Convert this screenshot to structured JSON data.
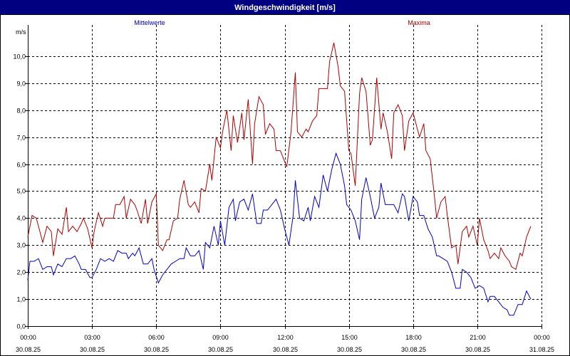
{
  "chart_data": {
    "type": "line",
    "title": "Windgeschwindigkeit [m/s]",
    "ylabel": "m/s",
    "ylim": [
      0,
      11
    ],
    "yticks": [
      "0,0",
      "1,0",
      "2,0",
      "3,0",
      "4,0",
      "5,0",
      "6,0",
      "7,0",
      "8,0",
      "9,0",
      "10,0"
    ],
    "xlim": [
      0,
      24
    ],
    "xticks": [
      {
        "time": "00:00",
        "date": "30.08.25",
        "hour": 0
      },
      {
        "time": "03:00",
        "date": "30.08.25",
        "hour": 3
      },
      {
        "time": "06:00",
        "date": "30.08.25",
        "hour": 6
      },
      {
        "time": "09:00",
        "date": "30.08.25",
        "hour": 9
      },
      {
        "time": "12:00",
        "date": "30.08.25",
        "hour": 12
      },
      {
        "time": "15:00",
        "date": "30.08.25",
        "hour": 15
      },
      {
        "time": "18:00",
        "date": "30.08.25",
        "hour": 18
      },
      {
        "time": "21:00",
        "date": "30.08.25",
        "hour": 21
      },
      {
        "time": "00:00",
        "date": "31.08.25",
        "hour": 24
      }
    ],
    "grid": true,
    "series": [
      {
        "name": "Mittelwerte",
        "color": "#0000cc",
        "values": [
          [
            0.0,
            1.7
          ],
          [
            0.1,
            2.4
          ],
          [
            0.3,
            2.4
          ],
          [
            0.5,
            2.5
          ],
          [
            0.7,
            2.1
          ],
          [
            0.9,
            2.2
          ],
          [
            1.1,
            2.2
          ],
          [
            1.2,
            1.9
          ],
          [
            1.4,
            2.3
          ],
          [
            1.6,
            2.2
          ],
          [
            1.8,
            2.5
          ],
          [
            2.0,
            2.5
          ],
          [
            2.2,
            2.6
          ],
          [
            2.4,
            2.3
          ],
          [
            2.5,
            2.1
          ],
          [
            2.7,
            2.1
          ],
          [
            2.9,
            1.8
          ],
          [
            3.0,
            1.8
          ],
          [
            3.2,
            2.1
          ],
          [
            3.4,
            2.5
          ],
          [
            3.6,
            2.4
          ],
          [
            3.8,
            2.5
          ],
          [
            4.0,
            2.4
          ],
          [
            4.2,
            2.8
          ],
          [
            4.4,
            2.7
          ],
          [
            4.6,
            2.7
          ],
          [
            4.7,
            2.5
          ],
          [
            4.9,
            2.7
          ],
          [
            5.0,
            2.6
          ],
          [
            5.2,
            2.9
          ],
          [
            5.4,
            2.3
          ],
          [
            5.6,
            2.3
          ],
          [
            5.8,
            2.5
          ],
          [
            5.9,
            2.1
          ],
          [
            6.1,
            1.6
          ],
          [
            6.3,
            1.9
          ],
          [
            6.5,
            2.1
          ],
          [
            6.7,
            2.3
          ],
          [
            6.9,
            2.4
          ],
          [
            7.1,
            2.5
          ],
          [
            7.3,
            2.5
          ],
          [
            7.4,
            2.9
          ],
          [
            7.6,
            2.6
          ],
          [
            7.8,
            2.6
          ],
          [
            8.0,
            2.8
          ],
          [
            8.2,
            2.1
          ],
          [
            8.3,
            3.1
          ],
          [
            8.5,
            2.9
          ],
          [
            8.7,
            3.7
          ],
          [
            8.9,
            3.0
          ],
          [
            9.0,
            3.9
          ],
          [
            9.2,
            3.0
          ],
          [
            9.4,
            4.4
          ],
          [
            9.6,
            4.7
          ],
          [
            9.7,
            3.9
          ],
          [
            9.9,
            4.6
          ],
          [
            10.1,
            4.7
          ],
          [
            10.3,
            4.3
          ],
          [
            10.5,
            4.9
          ],
          [
            10.7,
            3.8
          ],
          [
            10.9,
            3.8
          ],
          [
            11.0,
            4.3
          ],
          [
            11.2,
            4.3
          ],
          [
            11.4,
            4.5
          ],
          [
            11.6,
            4.7
          ],
          [
            11.8,
            4.3
          ],
          [
            12.0,
            3.6
          ],
          [
            12.2,
            3.0
          ],
          [
            12.4,
            4.1
          ],
          [
            12.5,
            5.4
          ],
          [
            12.7,
            4.0
          ],
          [
            12.9,
            3.9
          ],
          [
            13.1,
            4.4
          ],
          [
            13.2,
            3.9
          ],
          [
            13.4,
            4.8
          ],
          [
            13.6,
            4.4
          ],
          [
            13.8,
            5.6
          ],
          [
            14.0,
            5.0
          ],
          [
            14.2,
            5.8
          ],
          [
            14.4,
            6.4
          ],
          [
            14.6,
            6.0
          ],
          [
            14.8,
            5.2
          ],
          [
            14.9,
            4.5
          ],
          [
            15.1,
            4.3
          ],
          [
            15.3,
            3.9
          ],
          [
            15.5,
            3.2
          ],
          [
            15.6,
            4.7
          ],
          [
            15.8,
            5.5
          ],
          [
            16.0,
            4.8
          ],
          [
            16.2,
            4.0
          ],
          [
            16.4,
            4.4
          ],
          [
            16.5,
            5.3
          ],
          [
            16.7,
            4.5
          ],
          [
            16.9,
            4.5
          ],
          [
            17.1,
            4.5
          ],
          [
            17.3,
            4.2
          ],
          [
            17.5,
            4.9
          ],
          [
            17.6,
            4.8
          ],
          [
            17.8,
            3.9
          ],
          [
            18.0,
            4.8
          ],
          [
            18.2,
            4.6
          ],
          [
            18.3,
            4.1
          ],
          [
            18.5,
            4.1
          ],
          [
            18.7,
            3.6
          ],
          [
            18.9,
            3.3
          ],
          [
            19.1,
            2.6
          ],
          [
            19.2,
            2.6
          ],
          [
            19.4,
            2.5
          ],
          [
            19.6,
            2.4
          ],
          [
            19.8,
            2.0
          ],
          [
            20.0,
            1.4
          ],
          [
            20.2,
            1.4
          ],
          [
            20.3,
            2.1
          ],
          [
            20.5,
            2.0
          ],
          [
            20.7,
            1.8
          ],
          [
            20.9,
            1.4
          ],
          [
            21.1,
            1.5
          ],
          [
            21.3,
            1.4
          ],
          [
            21.5,
            0.9
          ],
          [
            21.6,
            1.1
          ],
          [
            21.8,
            1.1
          ],
          [
            22.0,
            0.9
          ],
          [
            22.2,
            0.7
          ],
          [
            22.4,
            0.6
          ],
          [
            22.5,
            0.4
          ],
          [
            22.7,
            0.4
          ],
          [
            22.9,
            0.8
          ],
          [
            23.1,
            0.8
          ],
          [
            23.3,
            1.3
          ],
          [
            23.5,
            1.0
          ]
        ]
      },
      {
        "name": "Maxima",
        "color": "#b00000",
        "values": [
          [
            0.0,
            3.3
          ],
          [
            0.2,
            4.1
          ],
          [
            0.4,
            4.0
          ],
          [
            0.5,
            3.7
          ],
          [
            0.7,
            3.1
          ],
          [
            0.9,
            3.7
          ],
          [
            1.1,
            3.5
          ],
          [
            1.2,
            2.6
          ],
          [
            1.4,
            3.6
          ],
          [
            1.6,
            3.4
          ],
          [
            1.8,
            4.4
          ],
          [
            1.9,
            3.5
          ],
          [
            2.1,
            3.7
          ],
          [
            2.3,
            3.5
          ],
          [
            2.5,
            3.8
          ],
          [
            2.6,
            4.0
          ],
          [
            2.8,
            3.6
          ],
          [
            3.0,
            2.9
          ],
          [
            3.1,
            3.5
          ],
          [
            3.3,
            4.2
          ],
          [
            3.5,
            3.7
          ],
          [
            3.6,
            4.0
          ],
          [
            3.8,
            4.0
          ],
          [
            4.0,
            4.0
          ],
          [
            4.1,
            4.5
          ],
          [
            4.3,
            4.5
          ],
          [
            4.5,
            4.8
          ],
          [
            4.6,
            4.0
          ],
          [
            4.8,
            4.7
          ],
          [
            5.0,
            4.5
          ],
          [
            5.1,
            4.3
          ],
          [
            5.3,
            3.8
          ],
          [
            5.5,
            4.7
          ],
          [
            5.6,
            3.8
          ],
          [
            5.8,
            4.6
          ],
          [
            6.0,
            4.9
          ],
          [
            6.1,
            3.0
          ],
          [
            6.3,
            2.8
          ],
          [
            6.5,
            3.2
          ],
          [
            6.6,
            3.2
          ],
          [
            6.8,
            3.9
          ],
          [
            7.0,
            4.0
          ],
          [
            7.1,
            4.7
          ],
          [
            7.3,
            5.4
          ],
          [
            7.5,
            4.5
          ],
          [
            7.6,
            4.4
          ],
          [
            7.8,
            4.6
          ],
          [
            8.0,
            4.2
          ],
          [
            8.1,
            5.1
          ],
          [
            8.3,
            5.0
          ],
          [
            8.5,
            6.0
          ],
          [
            8.6,
            5.4
          ],
          [
            8.8,
            7.0
          ],
          [
            9.0,
            6.6
          ],
          [
            9.1,
            7.2
          ],
          [
            9.3,
            8.0
          ],
          [
            9.5,
            6.5
          ],
          [
            9.6,
            7.8
          ],
          [
            9.8,
            6.8
          ],
          [
            10.0,
            7.9
          ],
          [
            10.1,
            6.9
          ],
          [
            10.3,
            8.4
          ],
          [
            10.5,
            6.0
          ],
          [
            10.6,
            7.5
          ],
          [
            10.8,
            8.5
          ],
          [
            11.0,
            8.2
          ],
          [
            11.1,
            7.1
          ],
          [
            11.3,
            7.5
          ],
          [
            11.5,
            7.3
          ],
          [
            11.6,
            6.5
          ],
          [
            11.8,
            6.5
          ],
          [
            12.0,
            6.1
          ],
          [
            12.1,
            5.9
          ],
          [
            12.3,
            7.2
          ],
          [
            12.5,
            9.4
          ],
          [
            12.6,
            7.2
          ],
          [
            12.8,
            7.0
          ],
          [
            13.0,
            7.3
          ],
          [
            13.1,
            7.2
          ],
          [
            13.3,
            7.6
          ],
          [
            13.5,
            7.8
          ],
          [
            13.6,
            8.8
          ],
          [
            13.8,
            8.8
          ],
          [
            14.0,
            8.8
          ],
          [
            14.1,
            9.8
          ],
          [
            14.3,
            10.5
          ],
          [
            14.5,
            9.6
          ],
          [
            14.6,
            8.9
          ],
          [
            14.8,
            8.7
          ],
          [
            15.0,
            6.5
          ],
          [
            15.1,
            6.4
          ],
          [
            15.3,
            5.2
          ],
          [
            15.5,
            8.6
          ],
          [
            15.6,
            9.2
          ],
          [
            15.8,
            8.7
          ],
          [
            16.0,
            6.7
          ],
          [
            16.1,
            6.9
          ],
          [
            16.3,
            9.2
          ],
          [
            16.5,
            7.3
          ],
          [
            16.6,
            7.9
          ],
          [
            16.8,
            7.2
          ],
          [
            17.0,
            6.2
          ],
          [
            17.1,
            7.9
          ],
          [
            17.3,
            8.2
          ],
          [
            17.5,
            7.8
          ],
          [
            17.6,
            6.5
          ],
          [
            17.8,
            7.6
          ],
          [
            18.0,
            7.9
          ],
          [
            18.1,
            7.6
          ],
          [
            18.3,
            7.0
          ],
          [
            18.5,
            7.5
          ],
          [
            18.6,
            6.5
          ],
          [
            18.8,
            6.2
          ],
          [
            19.0,
            4.8
          ],
          [
            19.1,
            4.0
          ],
          [
            19.3,
            4.6
          ],
          [
            19.5,
            4.8
          ],
          [
            19.6,
            4.1
          ],
          [
            19.8,
            2.9
          ],
          [
            20.0,
            3.0
          ],
          [
            20.1,
            2.3
          ],
          [
            20.3,
            3.5
          ],
          [
            20.5,
            3.7
          ],
          [
            20.6,
            3.3
          ],
          [
            20.8,
            3.7
          ],
          [
            21.0,
            3.0
          ],
          [
            21.1,
            4.0
          ],
          [
            21.3,
            3.2
          ],
          [
            21.5,
            2.8
          ],
          [
            21.6,
            2.5
          ],
          [
            21.8,
            2.7
          ],
          [
            22.0,
            2.5
          ],
          [
            22.1,
            2.9
          ],
          [
            22.3,
            2.6
          ],
          [
            22.5,
            2.4
          ],
          [
            22.6,
            2.2
          ],
          [
            22.8,
            2.1
          ],
          [
            23.0,
            2.7
          ],
          [
            23.1,
            2.6
          ],
          [
            23.3,
            3.3
          ],
          [
            23.5,
            3.7
          ]
        ]
      }
    ]
  }
}
